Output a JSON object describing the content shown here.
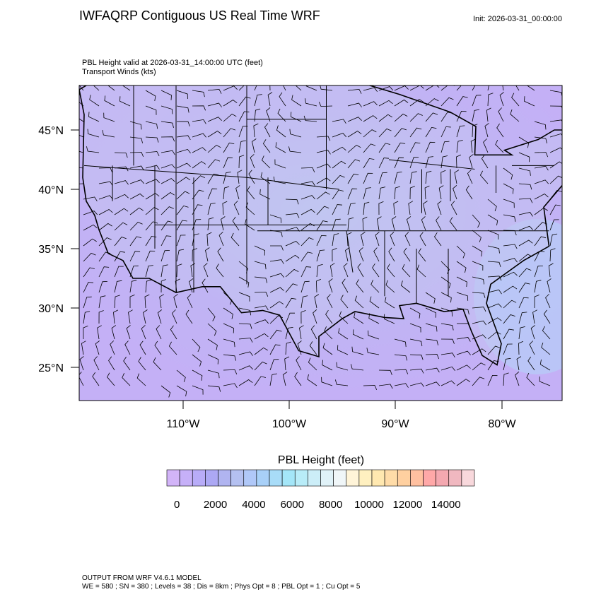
{
  "header": {
    "title": "IWFAQRP Contiguous US Real Time WRF",
    "init": "Init: 2026-03-31_00:00:00"
  },
  "subtitle": [
    "PBL Height valid at 2026-03-31_14:00:00 UTC   (feet)",
    "Transport Winds   (kts)"
  ],
  "map": {
    "lat_labels": [
      "45°N",
      "40°N",
      "35°N",
      "30°N",
      "25°N"
    ],
    "lon_labels": [
      "110°W",
      "100°W",
      "90°W",
      "80°W"
    ]
  },
  "colorbar": {
    "title": "PBL Height  (feet)",
    "colors": [
      "#d2b4f8",
      "#c6b0f8",
      "#b8acf8",
      "#aca8f4",
      "#b0b4f0",
      "#b4c0f0",
      "#b0c8f8",
      "#a8d0f8",
      "#a8dcf8",
      "#a4e6f8",
      "#b8ecf8",
      "#cceef8",
      "#e0f2f8",
      "#f0f6f8",
      "#fff4d8",
      "#fff0c0",
      "#ffe8b0",
      "#ffdca8",
      "#ffd0a0",
      "#ffc0a0",
      "#ffa8a8",
      "#f4a8b0",
      "#f0b8c0",
      "#f8d8dc"
    ],
    "tick_labels": [
      "0",
      "2000",
      "4000",
      "6000",
      "8000",
      "10000",
      "12000",
      "14000"
    ]
  },
  "footer": [
    "OUTPUT FROM WRF V4.6.1 MODEL",
    "WE = 580 ; SN = 380 ; Levels = 38 ; Dis = 8km ; Phys Opt = 8 ; PBL Opt = 1 ; Cu Opt = 5"
  ]
}
